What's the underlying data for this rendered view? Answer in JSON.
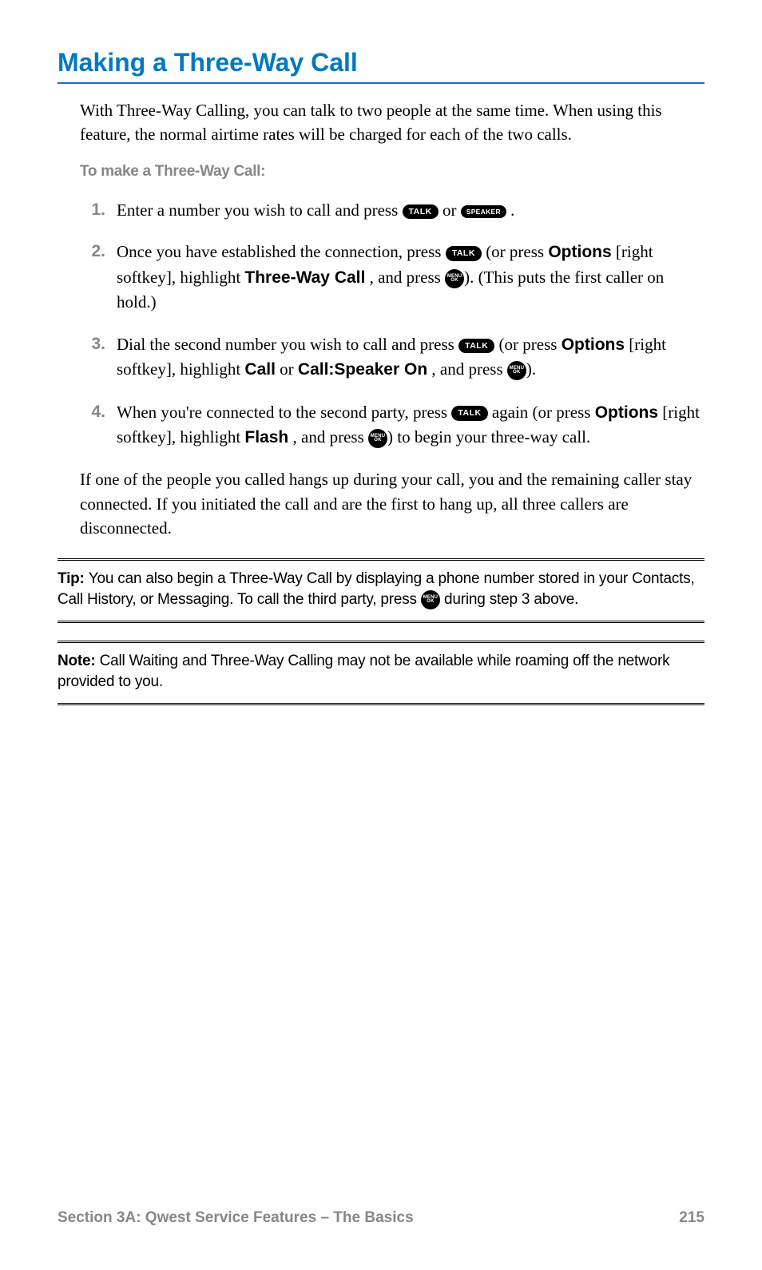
{
  "title": "Making a Three-Way Call",
  "intro": "With Three-Way Calling, you can talk to two people at the same time. When using this feature, the normal airtime rates will be charged for each of the two calls.",
  "subhead": "To make a Three-Way Call:",
  "buttons": {
    "talk": "TALK",
    "speaker": "SPEAKER",
    "menu": "MENU",
    "ok": "OK"
  },
  "steps": {
    "s1": {
      "num": "1.",
      "a": "Enter a number you wish to call and press ",
      "b": " or ",
      "c": "."
    },
    "s2": {
      "num": "2.",
      "a": "Once you have established the connection, press ",
      "b": " (or press ",
      "options": "Options",
      "c": " [right softkey], highlight ",
      "twc": "Three-Way Call",
      "d": ", and press ",
      "e": "). (This puts the first caller on hold.)"
    },
    "s3": {
      "num": "3.",
      "a": "Dial the second number you wish to call and press ",
      "b": " (or press ",
      "options": "Options",
      "c": " [right softkey], highlight ",
      "call": "Call",
      "or": " or ",
      "callspk": "Call:Speaker On",
      "d": ", and press ",
      "e": ")."
    },
    "s4": {
      "num": "4.",
      "a": "When you're connected to the second party, press ",
      "b": " again (or press ",
      "options": "Options",
      "c": " [right softkey], highlight ",
      "flash": "Flash",
      "d": ", and press ",
      "e": ") to begin your three-way call."
    }
  },
  "post": "If one of the people you called hangs up during your call, you and the remaining caller stay connected. If you initiated the call and are the first to hang up, all three callers are disconnected.",
  "tip": {
    "lead": "Tip: ",
    "a": "You can also begin a Three-Way Call by displaying a phone number stored in your Contacts, Call History, or Messaging. To call the third party, press ",
    "b": " during step 3 above."
  },
  "note": {
    "lead": "Note: ",
    "a": "Call Waiting and Three-Way Calling may not be available while roaming off the network provided to you."
  },
  "footer": {
    "section": "Section 3A: Qwest Service Features – The Basics",
    "page": "215"
  },
  "colors": {
    "accent": "#0079c1",
    "muted": "#868787",
    "text": "#000000",
    "bg": "#ffffff"
  }
}
